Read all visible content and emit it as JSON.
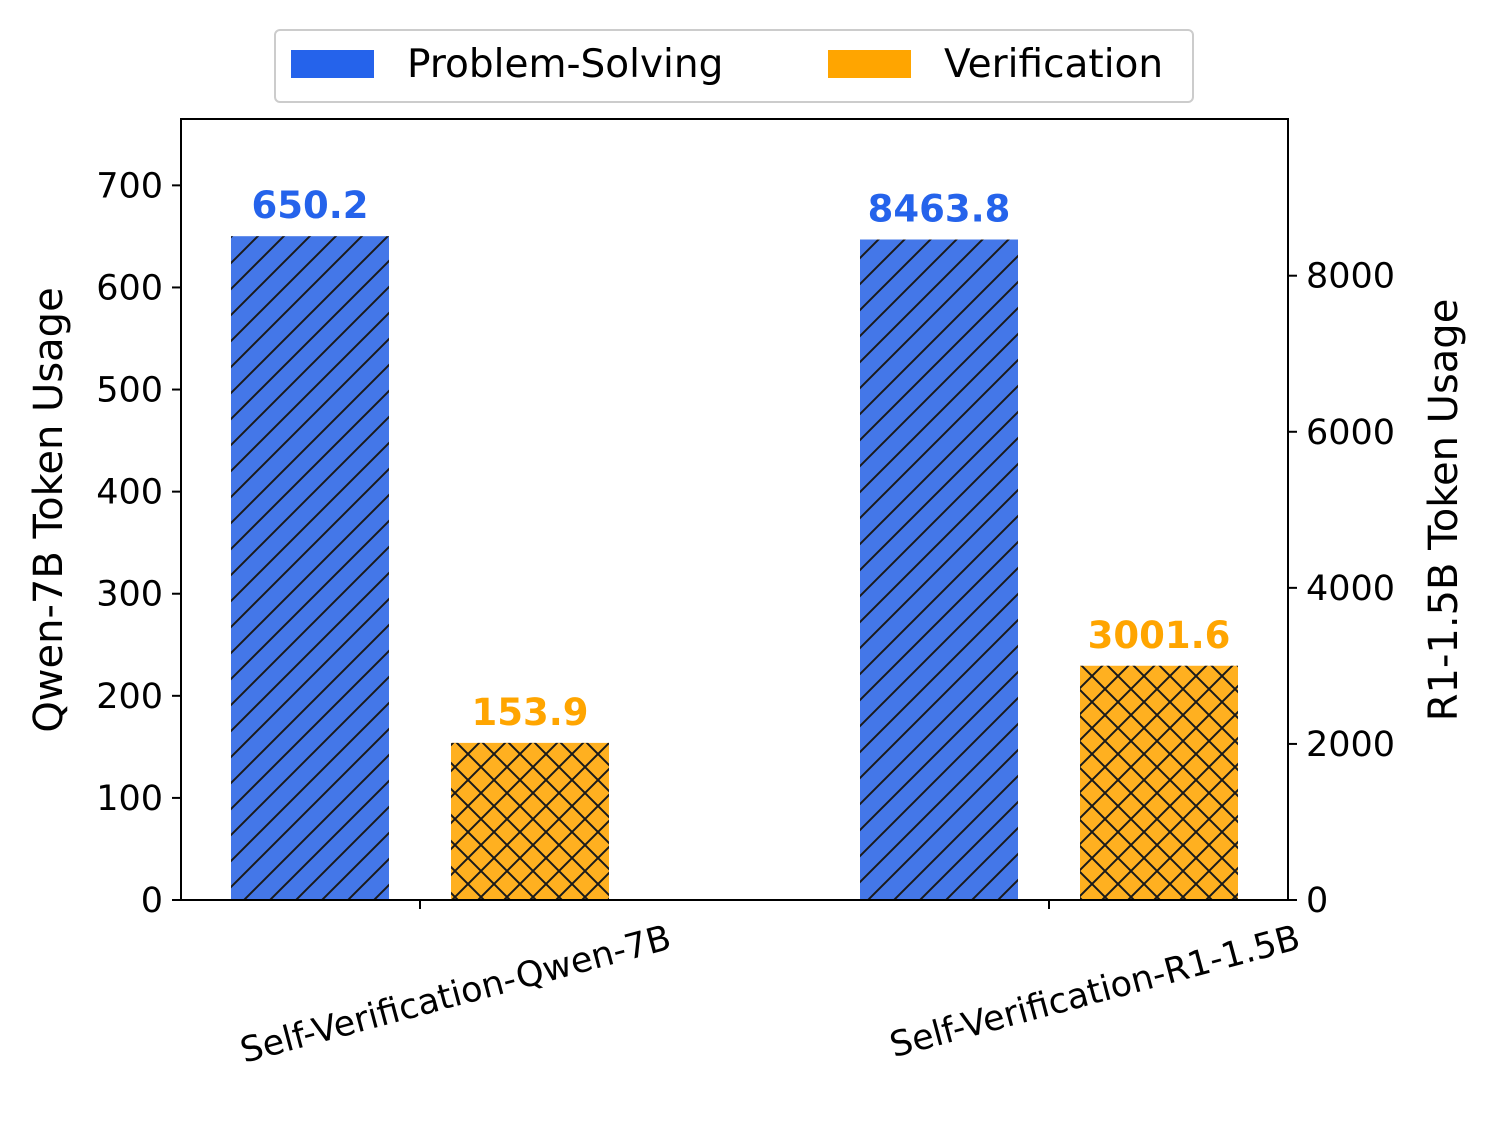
{
  "chart_data": {
    "type": "bar",
    "categories": [
      "Self-Verification-Qwen-7B",
      "Self-Verification-R1-1.5B"
    ],
    "series": [
      {
        "name": "Problem-Solving",
        "color": "#4477e8",
        "legend_color": "#2563eb",
        "label_color": "#2563eb",
        "hatch": "diagonal",
        "values": [
          650.2,
          8463.8
        ]
      },
      {
        "name": "Verification",
        "color": "#ffb020",
        "legend_color": "#ffa500",
        "label_color": "#ffa500",
        "hatch": "crosshatch",
        "values": [
          153.9,
          3001.6
        ]
      }
    ],
    "ylabel_left": "Qwen-7B Token Usage",
    "ylabel_right": "R1-1.5B Token Usage",
    "ylim_left": [
      0,
      765
    ],
    "ylim_right": [
      0,
      10008
    ],
    "yticks_left": [
      0,
      100,
      200,
      300,
      400,
      500,
      600,
      700
    ],
    "yticks_right": [
      0,
      2000,
      4000,
      6000,
      8000
    ],
    "category_axis": [
      "left",
      "right"
    ],
    "legend_placement": "top-center",
    "grid": false
  }
}
